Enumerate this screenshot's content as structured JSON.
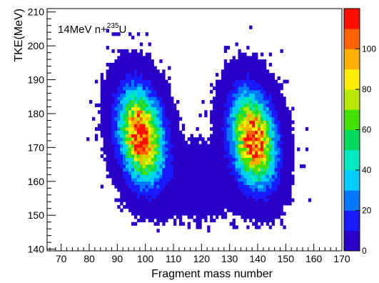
{
  "chart_data": {
    "type": "heatmap",
    "title": "",
    "annotation": {
      "prefix": "14MeV n+",
      "superscript": "235",
      "suffix": "U"
    },
    "xlabel": "Fragment mass number",
    "ylabel": "TKE(MeV)",
    "xlim": [
      65,
      170
    ],
    "ylim": [
      139.5,
      211
    ],
    "xticks": [
      70,
      80,
      90,
      100,
      110,
      120,
      130,
      140,
      150,
      160,
      170
    ],
    "yticks": [
      140,
      150,
      160,
      170,
      180,
      190,
      200,
      210
    ],
    "bin_width_x": 1,
    "bin_width_y": 1,
    "colorbar": {
      "min": 0,
      "max": 120,
      "ticks": [
        0,
        20,
        40,
        60,
        80,
        100
      ],
      "palette": [
        "#2a00c8",
        "#1a1aff",
        "#0077ff",
        "#00ccff",
        "#00e8c0",
        "#00d860",
        "#44e000",
        "#b8e800",
        "#ffee00",
        "#ffb000",
        "#ff6400",
        "#ff1000"
      ]
    },
    "peaks": [
      {
        "mass": 98,
        "tke": 173,
        "max_counts": 120
      },
      {
        "mass": 138,
        "tke": 172,
        "max_counts": 118
      }
    ],
    "grid": false,
    "legend": "none"
  }
}
